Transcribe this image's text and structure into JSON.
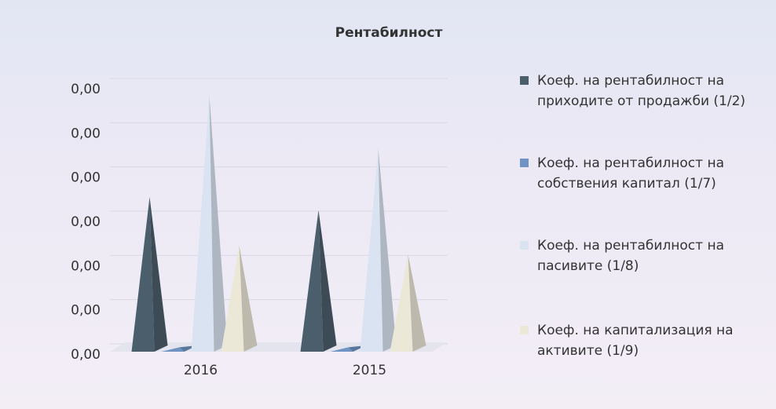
{
  "chart_data": {
    "type": "bar",
    "title": "Рентабилност",
    "categories": [
      "2016",
      "2015"
    ],
    "series": [
      {
        "name": "Коеф. на рентабилност на приходите от продажби (1/2)",
        "color": "#4b5e6c",
        "values": [
          0.0035,
          0.0032
        ]
      },
      {
        "name": "Коеф. на рентабилност на собствения капитал (1/7)",
        "color": "#6f93c2",
        "values": [
          0.0001,
          0.0001
        ]
      },
      {
        "name": "Коеф. на рентабилност на пасивите (1/8)",
        "color": "#d9e3f1",
        "values": [
          0.0058,
          0.0046
        ]
      },
      {
        "name": "Коеф. на капитализация на активите (1/9)",
        "color": "#ece8d8",
        "values": [
          0.0024,
          0.0022
        ]
      }
    ],
    "ylim": [
      0,
      0.006
    ],
    "yticks": [
      {
        "value": 0,
        "label": "0,00"
      },
      {
        "value": 0.001,
        "label": "0,00"
      },
      {
        "value": 0.002,
        "label": "0,00"
      },
      {
        "value": 0.003,
        "label": "0,00"
      },
      {
        "value": 0.004,
        "label": "0,00"
      },
      {
        "value": 0.005,
        "label": "0,00"
      },
      {
        "value": 0.006,
        "label": "0,00"
      }
    ],
    "grid": true
  }
}
